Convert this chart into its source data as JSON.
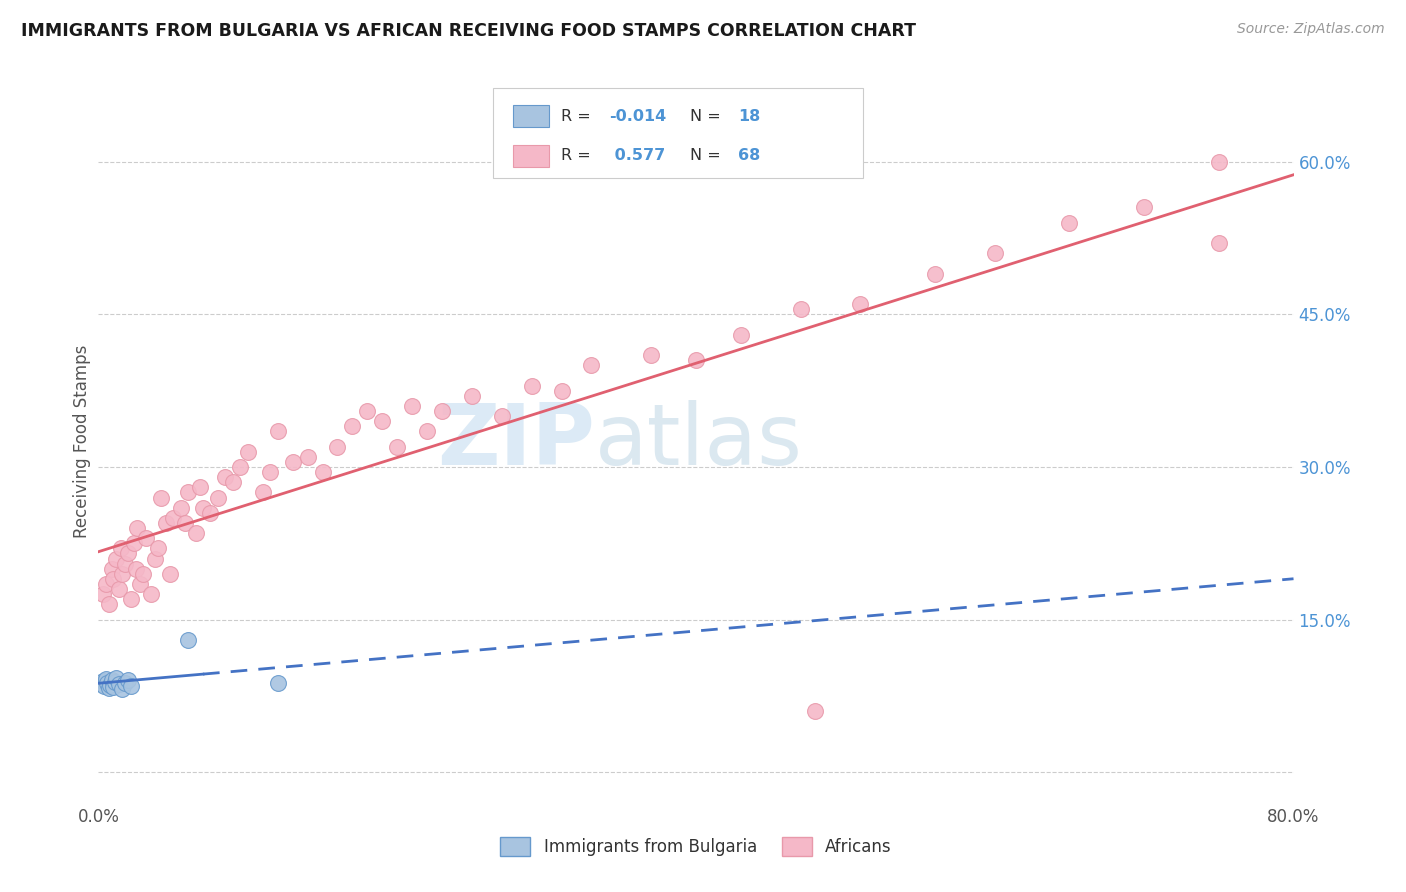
{
  "title": "IMMIGRANTS FROM BULGARIA VS AFRICAN RECEIVING FOOD STAMPS CORRELATION CHART",
  "source": "Source: ZipAtlas.com",
  "ylabel": "Receiving Food Stamps",
  "xlim": [
    0.0,
    0.8
  ],
  "ylim": [
    -0.03,
    0.68
  ],
  "bg_color": "#ffffff",
  "blue_color": "#4472c4",
  "label_blue_color": "#4d94d5",
  "pink_line_color": "#e06070",
  "scatter_blue_fill": "#a8c4e0",
  "scatter_blue_edge": "#6699cc",
  "scatter_pink_fill": "#f5b8c8",
  "scatter_pink_edge": "#e899aa",
  "bulgaria_R": "-0.014",
  "bulgaria_N": "18",
  "african_R": "0.577",
  "african_N": "68",
  "bulgaria_x": [
    0.002,
    0.003,
    0.004,
    0.005,
    0.006,
    0.007,
    0.008,
    0.009,
    0.01,
    0.011,
    0.012,
    0.014,
    0.016,
    0.018,
    0.02,
    0.022,
    0.06,
    0.12
  ],
  "bulgaria_y": [
    0.087,
    0.09,
    0.085,
    0.092,
    0.088,
    0.083,
    0.086,
    0.091,
    0.084,
    0.089,
    0.093,
    0.087,
    0.082,
    0.088,
    0.091,
    0.085,
    0.13,
    0.088
  ],
  "african_x": [
    0.003,
    0.005,
    0.007,
    0.009,
    0.01,
    0.012,
    0.014,
    0.015,
    0.016,
    0.018,
    0.02,
    0.022,
    0.024,
    0.025,
    0.026,
    0.028,
    0.03,
    0.032,
    0.035,
    0.038,
    0.04,
    0.042,
    0.045,
    0.048,
    0.05,
    0.055,
    0.058,
    0.06,
    0.065,
    0.068,
    0.07,
    0.075,
    0.08,
    0.085,
    0.09,
    0.095,
    0.1,
    0.11,
    0.115,
    0.12,
    0.13,
    0.14,
    0.15,
    0.16,
    0.17,
    0.18,
    0.19,
    0.2,
    0.21,
    0.22,
    0.23,
    0.25,
    0.27,
    0.29,
    0.31,
    0.33,
    0.37,
    0.4,
    0.43,
    0.47,
    0.51,
    0.56,
    0.6,
    0.65,
    0.7,
    0.75,
    0.48,
    0.75
  ],
  "african_y": [
    0.175,
    0.185,
    0.165,
    0.2,
    0.19,
    0.21,
    0.18,
    0.22,
    0.195,
    0.205,
    0.215,
    0.17,
    0.225,
    0.2,
    0.24,
    0.185,
    0.195,
    0.23,
    0.175,
    0.21,
    0.22,
    0.27,
    0.245,
    0.195,
    0.25,
    0.26,
    0.245,
    0.275,
    0.235,
    0.28,
    0.26,
    0.255,
    0.27,
    0.29,
    0.285,
    0.3,
    0.315,
    0.275,
    0.295,
    0.335,
    0.305,
    0.31,
    0.295,
    0.32,
    0.34,
    0.355,
    0.345,
    0.32,
    0.36,
    0.335,
    0.355,
    0.37,
    0.35,
    0.38,
    0.375,
    0.4,
    0.41,
    0.405,
    0.43,
    0.455,
    0.46,
    0.49,
    0.51,
    0.54,
    0.555,
    0.6,
    0.06,
    0.52
  ]
}
